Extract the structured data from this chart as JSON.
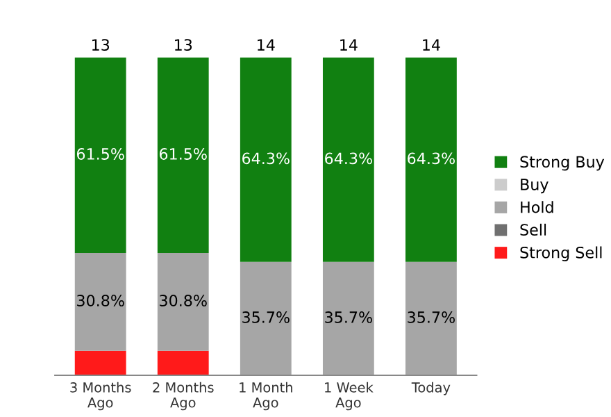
{
  "chart_data": {
    "type": "bar",
    "stacked": true,
    "categories": [
      "3 Months\nAgo",
      "2 Months\nAgo",
      "1 Month\nAgo",
      "1 Week\nAgo",
      "Today"
    ],
    "series": [
      {
        "name": "Strong Sell",
        "color": "#ff1a1a",
        "values": [
          7.7,
          7.7,
          0,
          0,
          0
        ],
        "value_labels": [
          null,
          null,
          null,
          null,
          null
        ]
      },
      {
        "name": "Sell",
        "color": "#707070",
        "values": [
          0,
          0,
          0,
          0,
          0
        ],
        "value_labels": [
          null,
          null,
          null,
          null,
          null
        ]
      },
      {
        "name": "Hold",
        "color": "#a6a6a6",
        "values": [
          30.8,
          30.8,
          35.7,
          35.7,
          35.7
        ],
        "value_labels": [
          "30.8%",
          "30.8%",
          "35.7%",
          "35.7%",
          "35.7%"
        ]
      },
      {
        "name": "Buy",
        "color": "#cccccc",
        "values": [
          0,
          0,
          0,
          0,
          0
        ],
        "value_labels": [
          null,
          null,
          null,
          null,
          null
        ]
      },
      {
        "name": "Strong Buy",
        "color": "#118011",
        "values": [
          61.5,
          61.5,
          64.3,
          64.3,
          64.3
        ],
        "value_labels": [
          "61.5%",
          "61.5%",
          "64.3%",
          "64.3%",
          "64.3%"
        ]
      }
    ],
    "annotations": [
      {
        "text": "13",
        "x": "3 Months\nAgo",
        "y": 100
      },
      {
        "text": "13",
        "x": "2 Months\nAgo",
        "y": 100
      },
      {
        "text": "14",
        "x": "1 Month\nAgo",
        "y": 100
      },
      {
        "text": "14",
        "x": "1 Week\nAgo",
        "y": 100
      },
      {
        "text": "14",
        "x": "Today",
        "y": 100
      }
    ],
    "legend": "right",
    "grid": false
  }
}
